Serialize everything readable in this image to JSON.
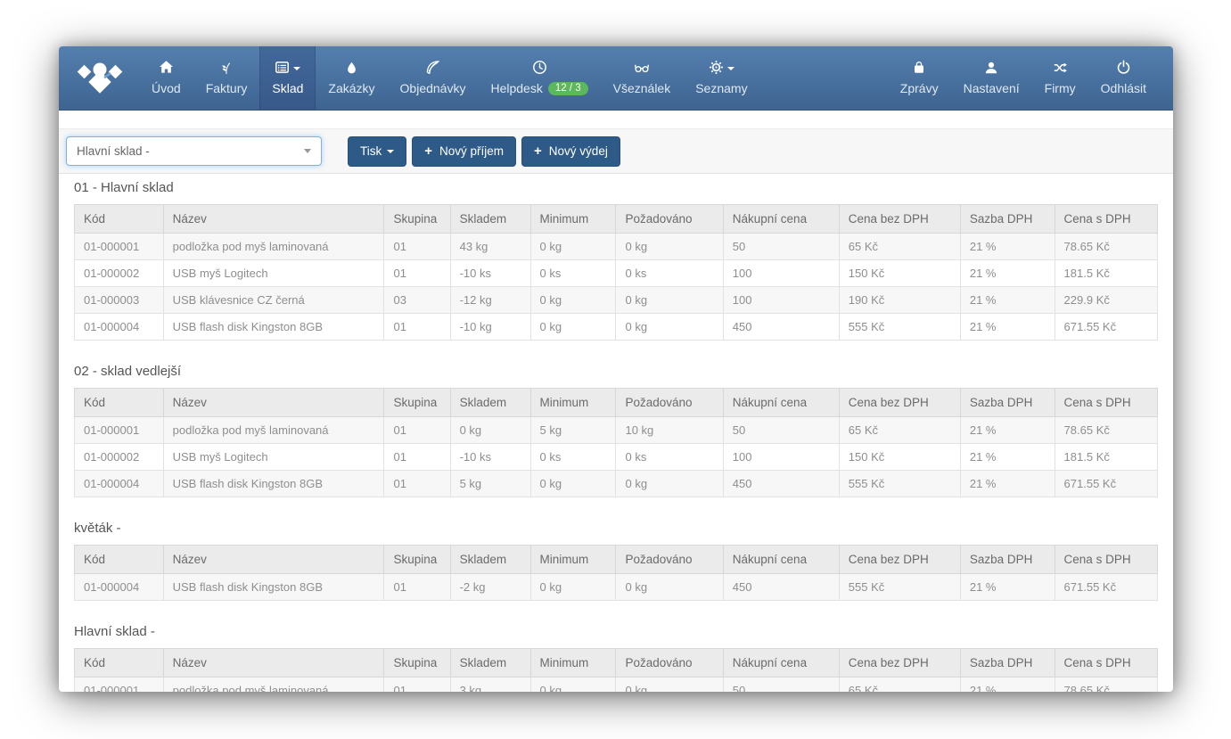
{
  "nav": {
    "items": [
      {
        "id": "uvod",
        "label": "Úvod",
        "icon": "home-icon"
      },
      {
        "id": "faktury",
        "label": "Faktury",
        "icon": "invoices-icon"
      },
      {
        "id": "sklad",
        "label": "Sklad",
        "icon": "warehouse-icon",
        "active": true,
        "caret": true
      },
      {
        "id": "zakazky",
        "label": "Zakázky",
        "icon": "droplet-icon"
      },
      {
        "id": "objednavky",
        "label": "Objednávky",
        "icon": "leaf-icon"
      },
      {
        "id": "helpdesk",
        "label": "Helpdesk",
        "icon": "clock-icon",
        "badge": "12 / 3"
      },
      {
        "id": "vseznalek",
        "label": "Všeználek",
        "icon": "glasses-icon"
      },
      {
        "id": "seznamy",
        "label": "Seznamy",
        "icon": "gear-icon",
        "caret": true
      }
    ],
    "right_items": [
      {
        "id": "zpravy",
        "label": "Zprávy",
        "icon": "messages-icon"
      },
      {
        "id": "nastaveni",
        "label": "Nastavení",
        "icon": "user-icon"
      },
      {
        "id": "firmy",
        "label": "Firmy",
        "icon": "shuffle-icon"
      },
      {
        "id": "odhlasit",
        "label": "Odhlásit",
        "icon": "power-icon"
      }
    ]
  },
  "toolbar": {
    "warehouse_select_value": "Hlavní sklad -",
    "print_label": "Tisk",
    "new_receipt_label": "Nový příjem",
    "new_issue_label": "Nový výdej"
  },
  "columns": [
    "Kód",
    "Název",
    "Skupina",
    "Skladem",
    "Minimum",
    "Požadováno",
    "Nákupní cena",
    "Cena bez DPH",
    "Sazba DPH",
    "Cena s DPH"
  ],
  "sections": [
    {
      "title": "01 - Hlavní sklad",
      "rows": [
        [
          "01-000001",
          "podložka pod myš laminovaná",
          "01",
          "43 kg",
          "0 kg",
          "0 kg",
          "50",
          "65 Kč",
          "21 %",
          "78.65 Kč"
        ],
        [
          "01-000002",
          "USB myš Logitech",
          "01",
          "-10 ks",
          "0 ks",
          "0 ks",
          "100",
          "150 Kč",
          "21 %",
          "181.5 Kč"
        ],
        [
          "01-000003",
          "USB klávesnice CZ černá",
          "03",
          "-12 kg",
          "0 kg",
          "0 kg",
          "100",
          "190 Kč",
          "21 %",
          "229.9 Kč"
        ],
        [
          "01-000004",
          "USB flash disk Kingston 8GB",
          "01",
          "-10 kg",
          "0 kg",
          "0 kg",
          "450",
          "555 Kč",
          "21 %",
          "671.55 Kč"
        ]
      ]
    },
    {
      "title": "02 - sklad vedlejší",
      "rows": [
        [
          "01-000001",
          "podložka pod myš laminovaná",
          "01",
          "0 kg",
          "5 kg",
          "10 kg",
          "50",
          "65 Kč",
          "21 %",
          "78.65 Kč"
        ],
        [
          "01-000002",
          "USB myš Logitech",
          "01",
          "-10 ks",
          "0 ks",
          "0 ks",
          "100",
          "150 Kč",
          "21 %",
          "181.5 Kč"
        ],
        [
          "01-000004",
          "USB flash disk Kingston 8GB",
          "01",
          "5 kg",
          "0 kg",
          "0 kg",
          "450",
          "555 Kč",
          "21 %",
          "671.55 Kč"
        ]
      ]
    },
    {
      "title": "květák -",
      "rows": [
        [
          "01-000004",
          "USB flash disk Kingston 8GB",
          "01",
          "-2 kg",
          "0 kg",
          "0 kg",
          "450",
          "555 Kč",
          "21 %",
          "671.55 Kč"
        ]
      ]
    },
    {
      "title": "Hlavní sklad -",
      "rows": [
        [
          "01-000001",
          "podložka pod myš laminovaná",
          "01",
          "3 kg",
          "0 kg",
          "0 kg",
          "50",
          "65 Kč",
          "21 %",
          "78.65 Kč"
        ]
      ]
    }
  ],
  "colors": {
    "navbar_top": "#547fae",
    "navbar_bottom": "#3e6491",
    "active_item": "#38598a",
    "badge_green": "#5cb85c",
    "button_blue": "#2e5a87",
    "select_focus_border": "#7db2e2"
  }
}
